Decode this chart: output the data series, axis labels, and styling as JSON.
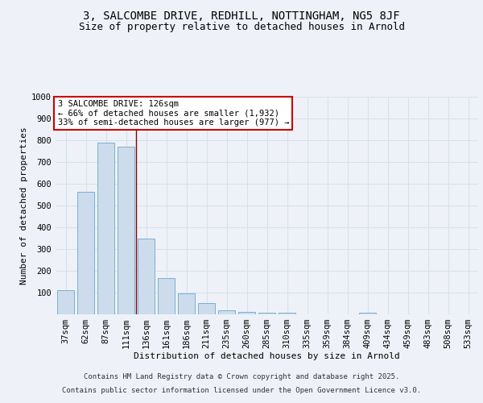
{
  "title_line1": "3, SALCOMBE DRIVE, REDHILL, NOTTINGHAM, NG5 8JF",
  "title_line2": "Size of property relative to detached houses in Arnold",
  "xlabel": "Distribution of detached houses by size in Arnold",
  "ylabel": "Number of detached properties",
  "categories": [
    "37sqm",
    "62sqm",
    "87sqm",
    "111sqm",
    "136sqm",
    "161sqm",
    "186sqm",
    "211sqm",
    "235sqm",
    "260sqm",
    "285sqm",
    "310sqm",
    "335sqm",
    "359sqm",
    "384sqm",
    "409sqm",
    "434sqm",
    "459sqm",
    "483sqm",
    "508sqm",
    "533sqm"
  ],
  "values": [
    112,
    562,
    790,
    770,
    350,
    165,
    97,
    52,
    18,
    12,
    8,
    8,
    1,
    0,
    0,
    8,
    0,
    0,
    0,
    0,
    1
  ],
  "bar_color": "#ccdcec",
  "bar_edge_color": "#7aafd4",
  "ylim": [
    0,
    1000
  ],
  "yticks": [
    0,
    100,
    200,
    300,
    400,
    500,
    600,
    700,
    800,
    900,
    1000
  ],
  "property_label": "3 SALCOMBE DRIVE: 126sqm",
  "annotation_line1": "← 66% of detached houses are smaller (1,932)",
  "annotation_line2": "33% of semi-detached houses are larger (977) →",
  "annotation_box_color": "#ffffff",
  "annotation_box_edge_color": "#cc0000",
  "vline_x": 3.5,
  "footer_line1": "Contains HM Land Registry data © Crown copyright and database right 2025.",
  "footer_line2": "Contains public sector information licensed under the Open Government Licence v3.0.",
  "background_color": "#eef2f8",
  "grid_color": "#d8e0ee",
  "title_fontsize": 10,
  "subtitle_fontsize": 9,
  "axis_label_fontsize": 8,
  "tick_fontsize": 7.5,
  "annotation_fontsize": 7.5,
  "footer_fontsize": 6.5
}
